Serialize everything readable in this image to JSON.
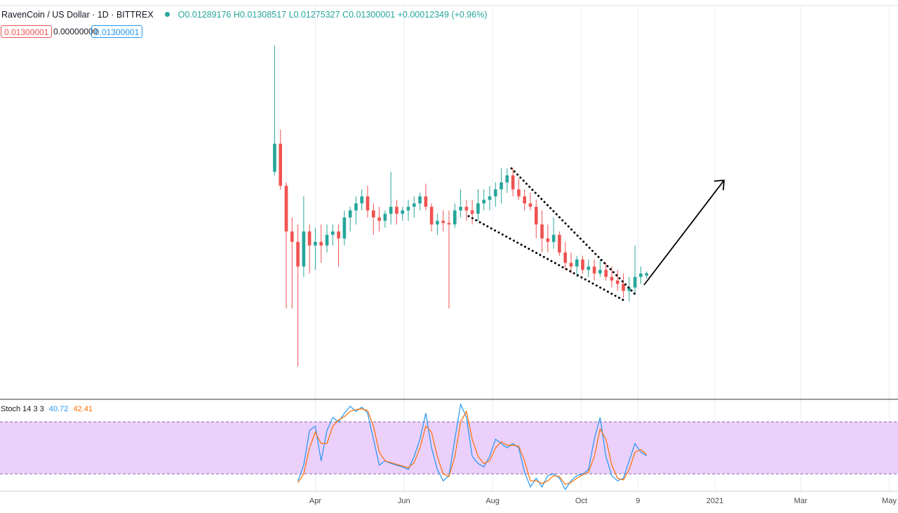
{
  "header": {
    "symbol": "RavenCoin / US Dollar · 1D · BITTREX",
    "ohlc_labels": [
      "O",
      "H",
      "L",
      "C"
    ],
    "change": "+0.00012349 (+0.96%)",
    "spread": "0.00000000",
    "stoch_title": "Stoch 14 3 3"
  },
  "chart_data": [
    {
      "type": "candlestick",
      "up_color": "#26a69a",
      "down_color": "#ef5350",
      "grid": true,
      "x": [
        3,
        7,
        11,
        15,
        19,
        23,
        27,
        31,
        35,
        39,
        43,
        47,
        51,
        55,
        59,
        63,
        67,
        71,
        75,
        79,
        83,
        87,
        91,
        95,
        99,
        103,
        107,
        111,
        115,
        119,
        123,
        127,
        131,
        135,
        139,
        143,
        147,
        151,
        155,
        159,
        163,
        167,
        171,
        175,
        179,
        183,
        187,
        191,
        195,
        199,
        203,
        207,
        211,
        215,
        219,
        223,
        227,
        231,
        235,
        239,
        243,
        247,
        251,
        255,
        259
      ],
      "open": [
        0.01778,
        0.0191,
        0.01712,
        0.01497,
        0.01448,
        0.01332,
        0.01497,
        0.01431,
        0.01448,
        0.01431,
        0.01481,
        0.01497,
        0.01464,
        0.01563,
        0.01596,
        0.01629,
        0.01662,
        0.01596,
        0.01563,
        0.01547,
        0.0158,
        0.01613,
        0.0158,
        0.01596,
        0.01613,
        0.01629,
        0.01662,
        0.01613,
        0.0153,
        0.01547,
        0.01537,
        0.0153,
        0.01596,
        0.01613,
        0.01596,
        0.0158,
        0.01629,
        0.01646,
        0.01662,
        0.01695,
        0.01728,
        0.01761,
        0.01695,
        0.01662,
        0.01629,
        0.01613,
        0.0153,
        0.01464,
        0.01448,
        0.01481,
        0.01398,
        0.01349,
        0.01332,
        0.01365,
        0.01316,
        0.01332,
        0.01299,
        0.01316,
        0.01283,
        0.01266,
        0.0125,
        0.01217,
        0.01233,
        0.01283,
        0.01289176
      ],
      "high": [
        0.02372,
        0.01976,
        0.01728,
        0.01563,
        0.0153,
        0.01662,
        0.0153,
        0.01514,
        0.0153,
        0.0153,
        0.0153,
        0.0153,
        0.01596,
        0.01613,
        0.01662,
        0.01695,
        0.01712,
        0.01629,
        0.01613,
        0.01596,
        0.01778,
        0.01646,
        0.01613,
        0.01646,
        0.01662,
        0.01679,
        0.01722,
        0.01629,
        0.0158,
        0.01596,
        0.01596,
        0.01629,
        0.01695,
        0.01646,
        0.01646,
        0.01695,
        0.01695,
        0.01712,
        0.01728,
        0.01794,
        0.01794,
        0.01794,
        0.01745,
        0.01695,
        0.01679,
        0.01646,
        0.01596,
        0.0153,
        0.01563,
        0.01497,
        0.01448,
        0.01398,
        0.01382,
        0.01382,
        0.01365,
        0.01365,
        0.01365,
        0.01349,
        0.01332,
        0.01316,
        0.01299,
        0.01283,
        0.01431,
        0.01332,
        0.01308517
      ],
      "low": [
        0.01761,
        0.01695,
        0.01134,
        0.01134,
        0.00861,
        0.01283,
        0.01299,
        0.01316,
        0.01349,
        0.01398,
        0.01431,
        0.01332,
        0.01431,
        0.01497,
        0.0153,
        0.01596,
        0.01563,
        0.01481,
        0.01497,
        0.01514,
        0.0153,
        0.0153,
        0.01547,
        0.01547,
        0.01563,
        0.01596,
        0.01596,
        0.01497,
        0.01481,
        0.01497,
        0.01134,
        0.01514,
        0.01563,
        0.01547,
        0.0153,
        0.01547,
        0.01596,
        0.01596,
        0.01613,
        0.01629,
        0.01679,
        0.01662,
        0.01646,
        0.01596,
        0.01596,
        0.01464,
        0.01398,
        0.01398,
        0.01415,
        0.01382,
        0.01316,
        0.01299,
        0.01283,
        0.01299,
        0.01283,
        0.01266,
        0.01283,
        0.01266,
        0.01233,
        0.01217,
        0.01184,
        0.01167,
        0.012,
        0.0125,
        0.01275327
      ],
      "close": [
        0.0191,
        0.01712,
        0.01497,
        0.01448,
        0.01332,
        0.01497,
        0.01431,
        0.01448,
        0.01431,
        0.01481,
        0.01497,
        0.01464,
        0.01563,
        0.01596,
        0.01629,
        0.01662,
        0.01596,
        0.01563,
        0.01547,
        0.0158,
        0.01613,
        0.0158,
        0.01596,
        0.01613,
        0.01629,
        0.01662,
        0.01613,
        0.0153,
        0.01547,
        0.01537,
        0.0153,
        0.01596,
        0.01613,
        0.01596,
        0.0158,
        0.01629,
        0.01646,
        0.01662,
        0.01695,
        0.01728,
        0.01761,
        0.01695,
        0.01662,
        0.01629,
        0.01613,
        0.0153,
        0.01464,
        0.01448,
        0.01481,
        0.01398,
        0.01349,
        0.01332,
        0.01365,
        0.01316,
        0.01332,
        0.01299,
        0.01316,
        0.01283,
        0.01266,
        0.0125,
        0.01217,
        0.01233,
        0.01283,
        0.01299,
        0.01300001
      ],
      "xlim": [
        -186,
        432
      ],
      "xticks": [
        {
          "value": 31,
          "label": "Apr"
        },
        {
          "value": 92,
          "label": "Jun"
        },
        {
          "value": 153,
          "label": "Aug"
        },
        {
          "value": 214,
          "label": "Oct"
        },
        {
          "value": 253,
          "label": "9"
        },
        {
          "value": 306,
          "label": "2021"
        },
        {
          "value": 365,
          "label": "Mar"
        },
        {
          "value": 426,
          "label": "May"
        }
      ],
      "ylim": [
        0.0072,
        0.0256
      ]
    },
    {
      "type": "line",
      "band_color": "#ead0fb",
      "bands": [
        20,
        80
      ],
      "ylim": [
        0,
        103.5
      ],
      "series": [
        {
          "color": "#2196f3",
          "values": [
            null,
            null,
            null,
            null,
            12,
            30,
            70,
            75,
            35,
            70,
            85,
            80,
            90,
            98,
            92,
            97,
            90,
            60,
            30,
            35,
            32,
            30,
            28,
            25,
            40,
            60,
            90,
            50,
            25,
            12,
            18,
            60,
            100,
            85,
            40,
            32,
            28,
            40,
            60,
            55,
            50,
            55,
            50,
            22,
            5,
            15,
            5,
            18,
            20,
            15,
            2,
            12,
            18,
            20,
            25,
            60,
            85,
            40,
            18,
            12,
            15,
            35,
            55,
            45,
            40.72
          ]
        },
        {
          "color": "#ff6d00",
          "values": [
            null,
            null,
            null,
            null,
            10,
            20,
            50,
            68,
            55,
            55,
            75,
            82,
            86,
            92,
            94,
            95,
            93,
            75,
            45,
            35,
            33,
            31,
            29,
            27,
            33,
            50,
            75,
            68,
            40,
            20,
            17,
            40,
            80,
            92,
            60,
            40,
            32,
            35,
            50,
            57,
            53,
            53,
            52,
            35,
            12,
            12,
            9,
            12,
            18,
            17,
            8,
            10,
            15,
            19,
            22,
            40,
            72,
            60,
            30,
            15,
            13,
            25,
            45,
            48,
            42.41
          ]
        }
      ]
    }
  ]
}
